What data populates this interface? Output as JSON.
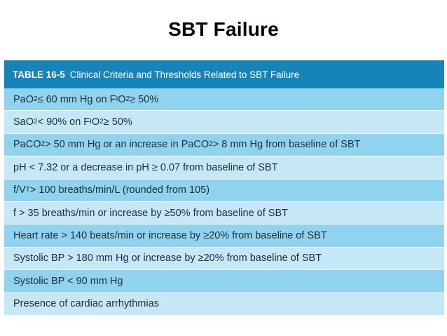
{
  "slide": {
    "title": "SBT Failure"
  },
  "table": {
    "number": "TABLE 16-5",
    "caption": "Clinical Criteria and Thresholds Related to SBT Failure",
    "header_color": "#1784b8",
    "row_colors": [
      "#8fd3ef",
      "#c6e8f6"
    ],
    "rows": [
      {
        "html": "PaO<sub>2</sub> ≤ 60 mm Hg on F<sub>I</sub>O<sub>2</sub> ≥ 50%"
      },
      {
        "html": "SaO<sub>2</sub> &lt; 90% on F<sub>I</sub>O<sub>2</sub> ≥ 50%"
      },
      {
        "html": "PaCO<sub>2</sub> &gt; 50 mm Hg or an increase in PaCO<sub>2</sub> &gt; 8 mm Hg from baseline of SBT"
      },
      {
        "html": "pH &lt; 7.32 or a decrease in pH ≥ 0.07 from baseline of SBT"
      },
      {
        "html": "f/V<sub>T</sub> &gt; 100 breaths/min/L (rounded from 105)"
      },
      {
        "html": "f &gt; 35 breaths/min or increase by ≥50% from baseline of SBT"
      },
      {
        "html": "Heart rate &gt; 140 beats/min or increase by ≥20% from baseline of SBT"
      },
      {
        "html": "Systolic BP &gt; 180 mm Hg or increase by ≥20% from baseline of SBT"
      },
      {
        "html": "Systolic BP &lt; 90 mm Hg"
      },
      {
        "html": "Presence of cardiac arrhythmias"
      }
    ]
  }
}
